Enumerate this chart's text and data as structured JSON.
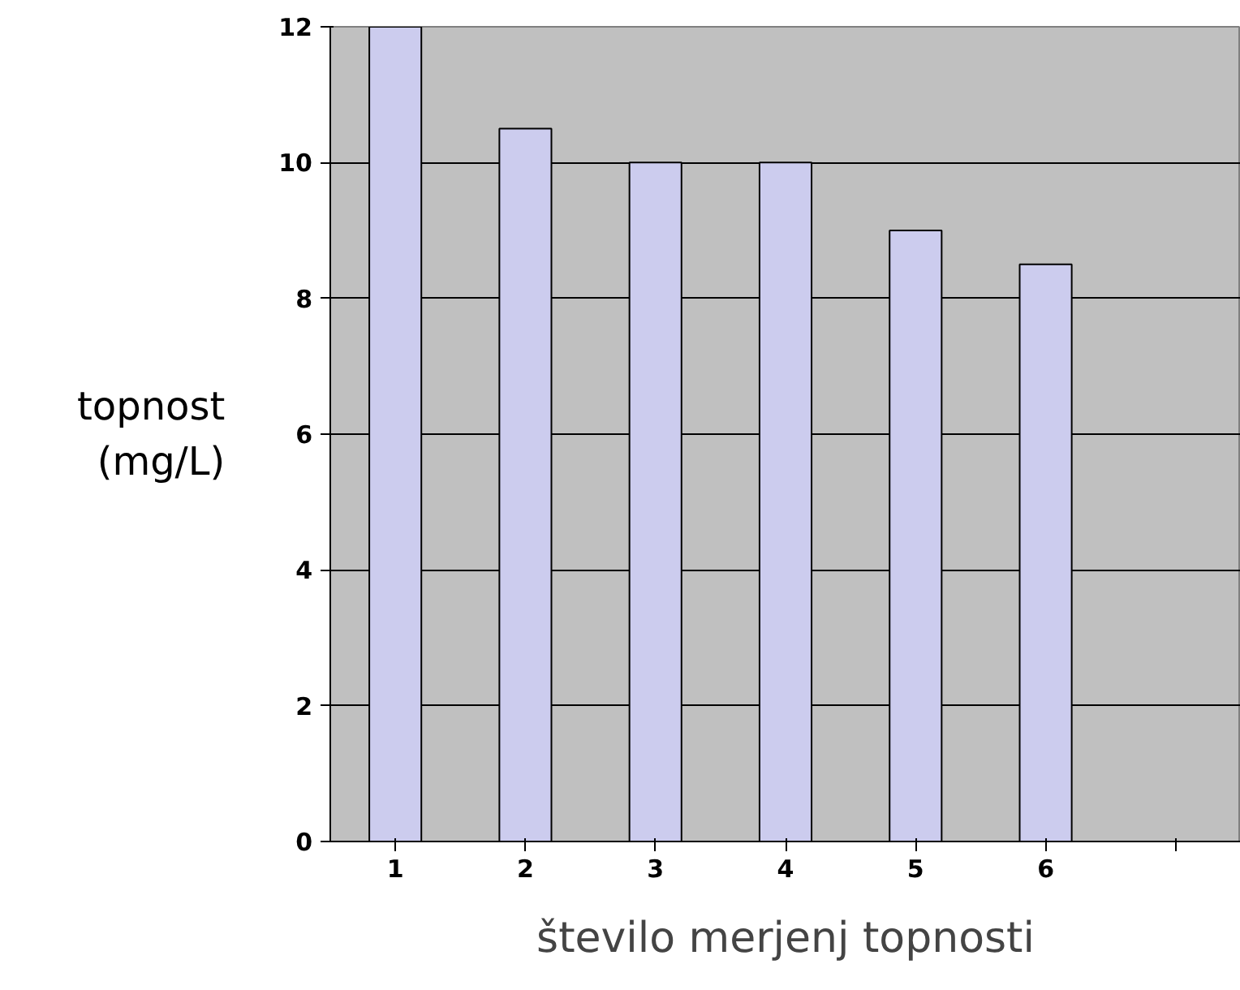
{
  "chart_data": {
    "type": "bar",
    "xlabel": "število merjenj topnosti",
    "ylabel": "topnost\n(mg/L)",
    "categories": [
      "1",
      "2",
      "3",
      "4",
      "5",
      "6",
      null
    ],
    "values": [
      12,
      10.5,
      10,
      10,
      9,
      8.5,
      null
    ],
    "color": "#ccccee",
    "ylim": [
      0,
      12
    ],
    "yticks": [
      0,
      2,
      4,
      6,
      8,
      10,
      12
    ],
    "grid": "y"
  }
}
